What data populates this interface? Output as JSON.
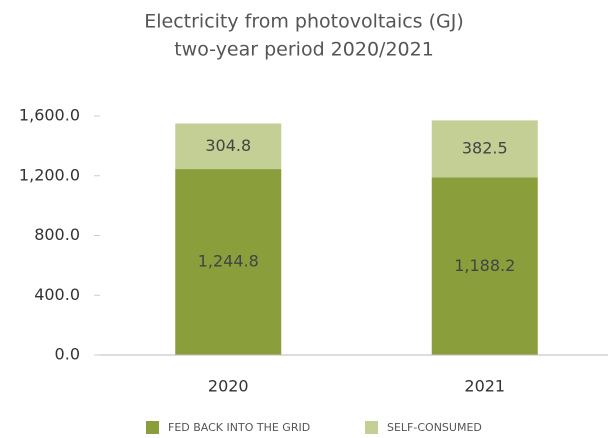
{
  "chart_data": {
    "type": "stacked_bar",
    "title": "Electricity from photovoltaics (GJ)",
    "subtitle": "two-year period 2020/2021",
    "categories": [
      "2020",
      "2021"
    ],
    "series": [
      {
        "name": "FED BACK INTO THE GRID",
        "color": "#8a9e3c",
        "values": [
          1244.8,
          1188.2
        ],
        "value_labels": [
          "1,244.8",
          "1,188.2"
        ]
      },
      {
        "name": "SELF-CONSUMED",
        "color": "#c3cf95",
        "values": [
          304.8,
          382.5
        ]
      }
    ],
    "ylim": [
      0,
      1600
    ],
    "yticks": [
      {
        "value": 0,
        "label": "0.0"
      },
      {
        "value": 400,
        "label": "400.0"
      },
      {
        "value": 800,
        "label": "800.0"
      },
      {
        "value": 1200,
        "label": "1,200.0"
      },
      {
        "value": 1600,
        "label": "1,600.0"
      }
    ],
    "grid": false,
    "legend": "bottom"
  }
}
